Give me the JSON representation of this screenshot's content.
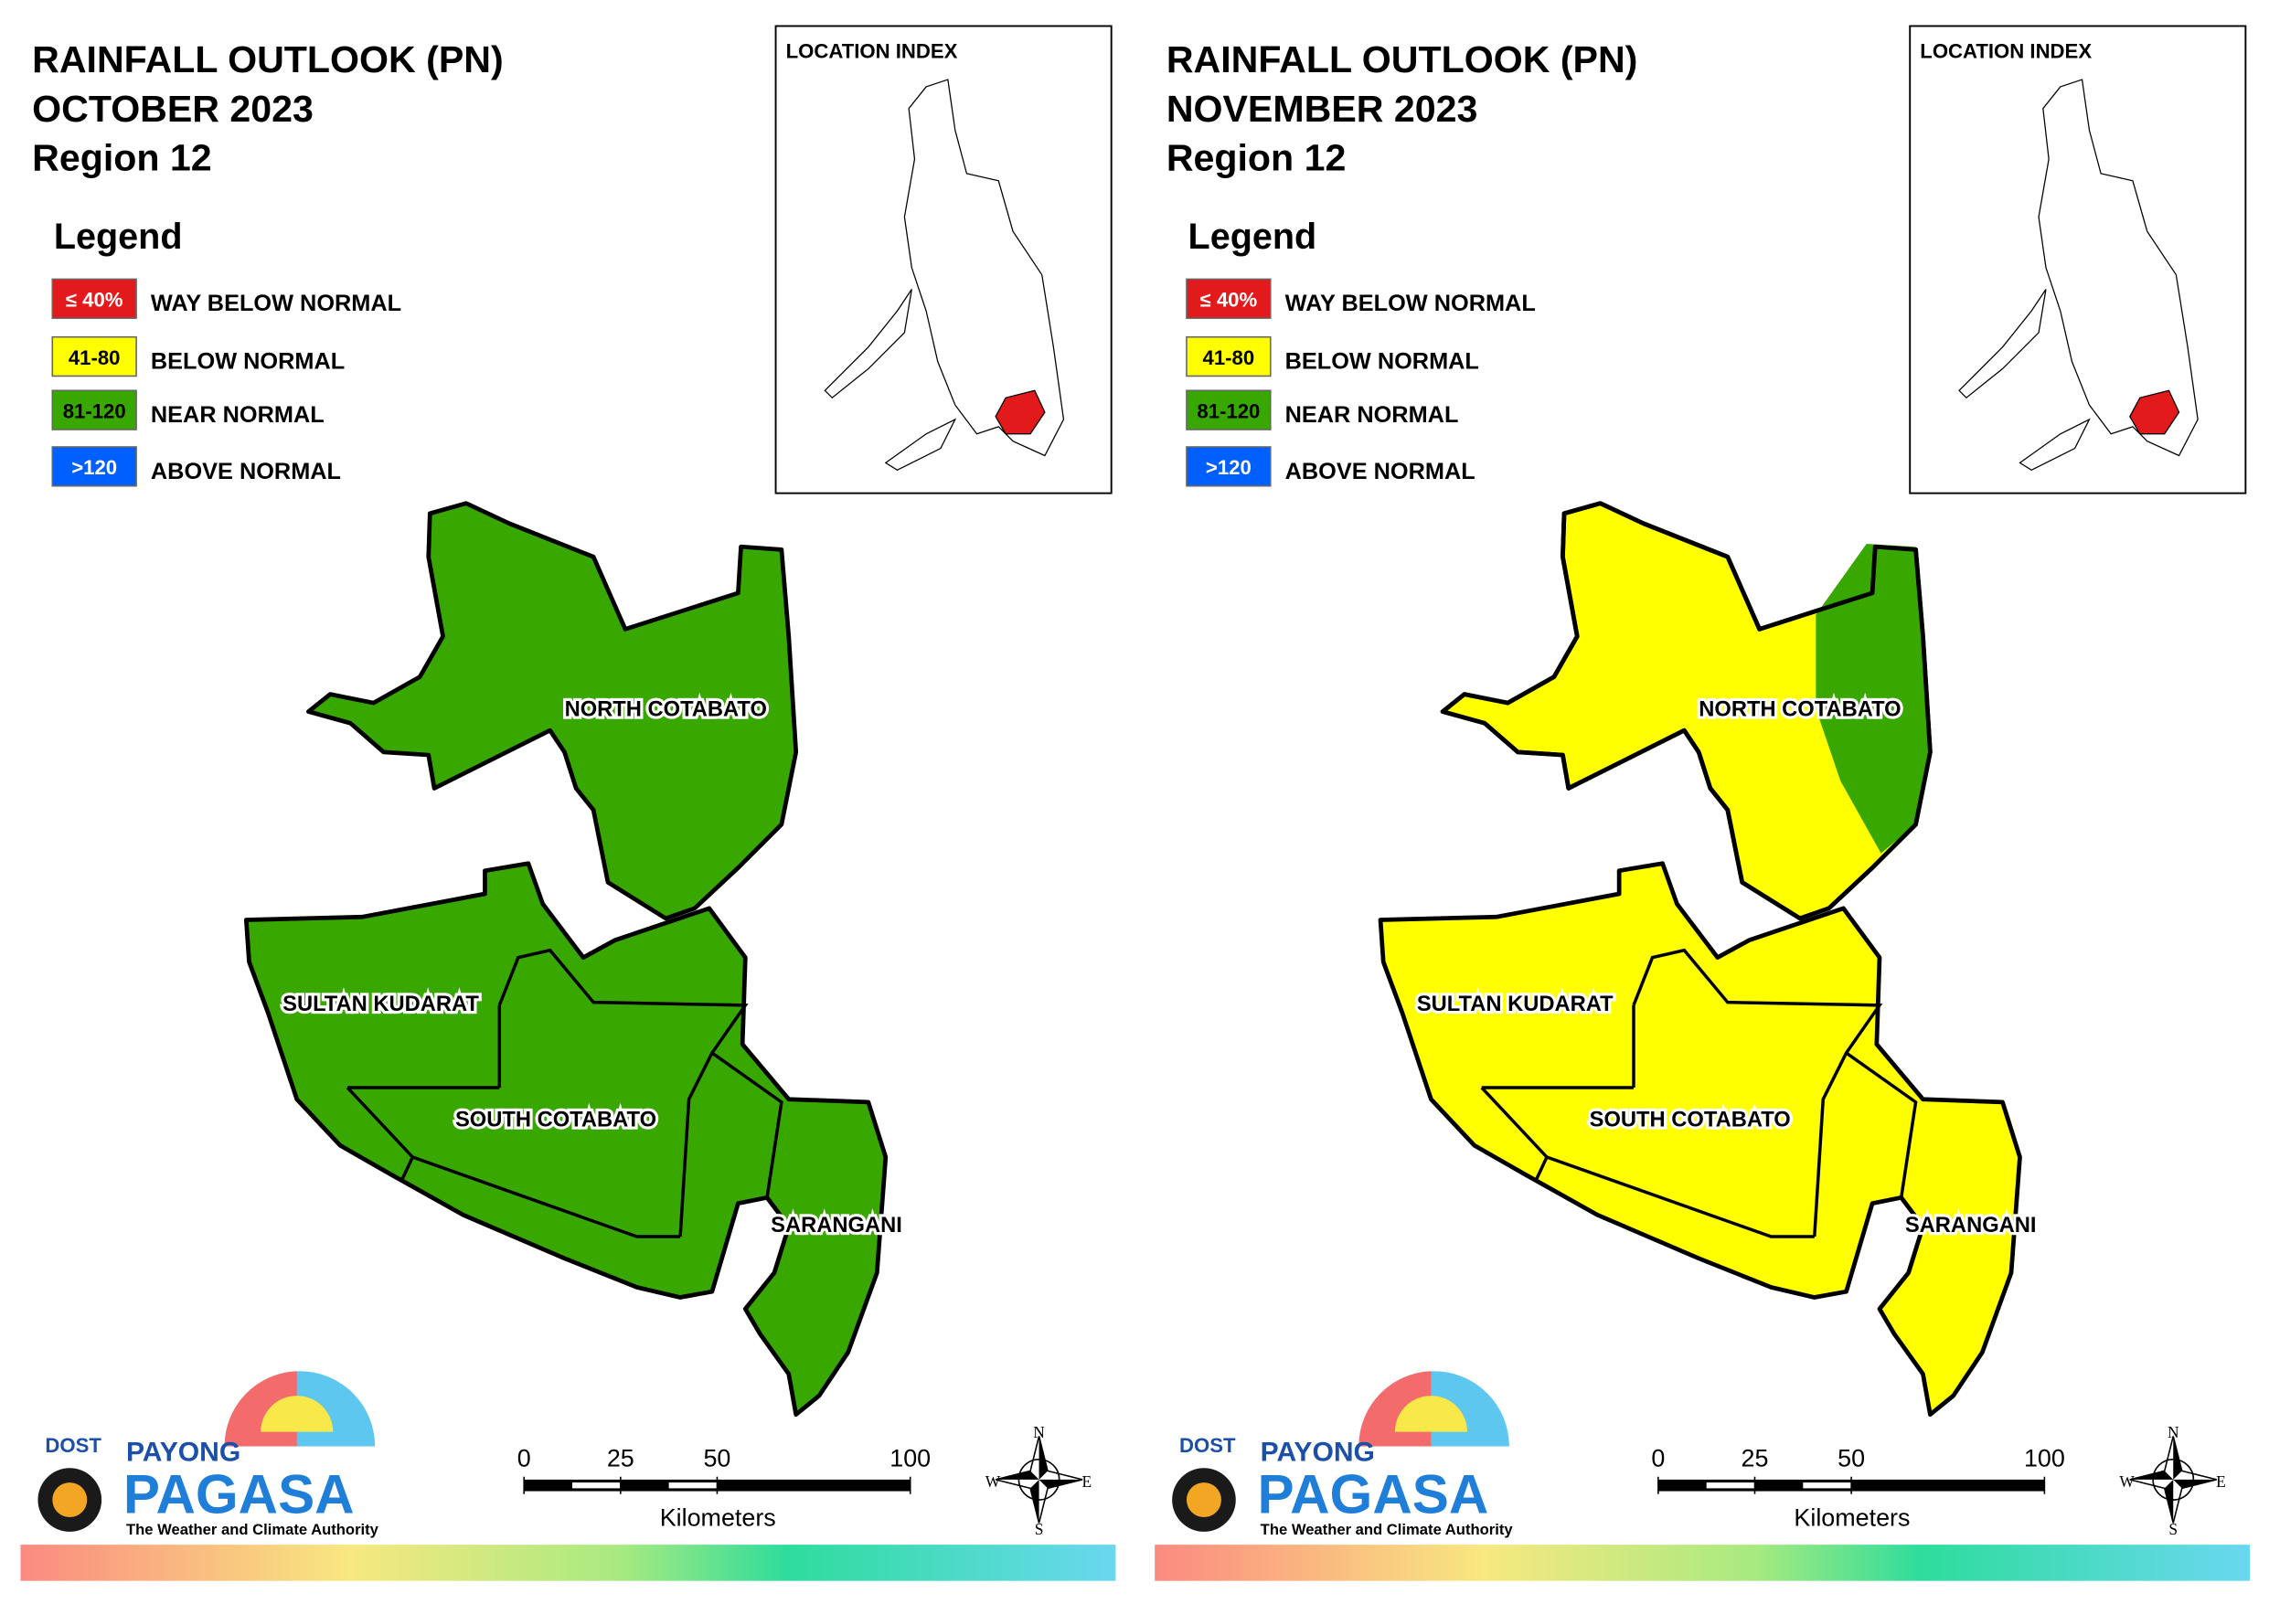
{
  "panels": [
    {
      "title": [
        "RAINFALL OUTLOOK (PN)",
        "OCTOBER 2023",
        "Region 12"
      ],
      "legend": {
        "title": "Legend",
        "items": [
          {
            "label": "≤ 40%",
            "text": "WAY BELOW NORMAL",
            "color": "#e31a1c"
          },
          {
            "label": "41-80",
            "text": "BELOW NORMAL",
            "color": "#ffff00"
          },
          {
            "label": "81-120",
            "text": "NEAR NORMAL",
            "color": "#38a800"
          },
          {
            "label": ">120",
            "text": "ABOVE NORMAL",
            "color": "#0060ff"
          }
        ]
      },
      "location_index": "LOCATION INDEX",
      "provinces": [
        "NORTH COTABATO",
        "SULTAN KUDARAT",
        "SOUTH COTABATO",
        "SARANGANI"
      ],
      "scale_bar": {
        "ticks": [
          0,
          25,
          50,
          100
        ],
        "unit": "Kilometers"
      },
      "compass": [
        "N",
        "E",
        "S",
        "W"
      ],
      "logo": [
        "DOST",
        "PAYONG",
        "PAGASA",
        "The Weather and Climate Authority"
      ]
    },
    {
      "title": [
        "RAINFALL OUTLOOK (PN)",
        "NOVEMBER 2023",
        "Region 12"
      ],
      "legend": {
        "title": "Legend",
        "items": [
          {
            "label": "≤ 40%",
            "text": "WAY BELOW NORMAL",
            "color": "#e31a1c"
          },
          {
            "label": "41-80",
            "text": "BELOW NORMAL",
            "color": "#ffff00"
          },
          {
            "label": "81-120",
            "text": "NEAR NORMAL",
            "color": "#38a800"
          },
          {
            "label": ">120",
            "text": "ABOVE NORMAL",
            "color": "#0060ff"
          }
        ]
      },
      "location_index": "LOCATION INDEX",
      "provinces": [
        "NORTH COTABATO",
        "SULTAN KUDARAT",
        "SOUTH COTABATO",
        "SARANGANI"
      ],
      "scale_bar": {
        "ticks": [
          0,
          25,
          50,
          100
        ],
        "unit": "Kilometers"
      },
      "compass": [
        "N",
        "E",
        "S",
        "W"
      ],
      "logo": [
        "DOST",
        "PAYONG",
        "PAGASA",
        "The Weather and Climate Authority"
      ]
    }
  ]
}
